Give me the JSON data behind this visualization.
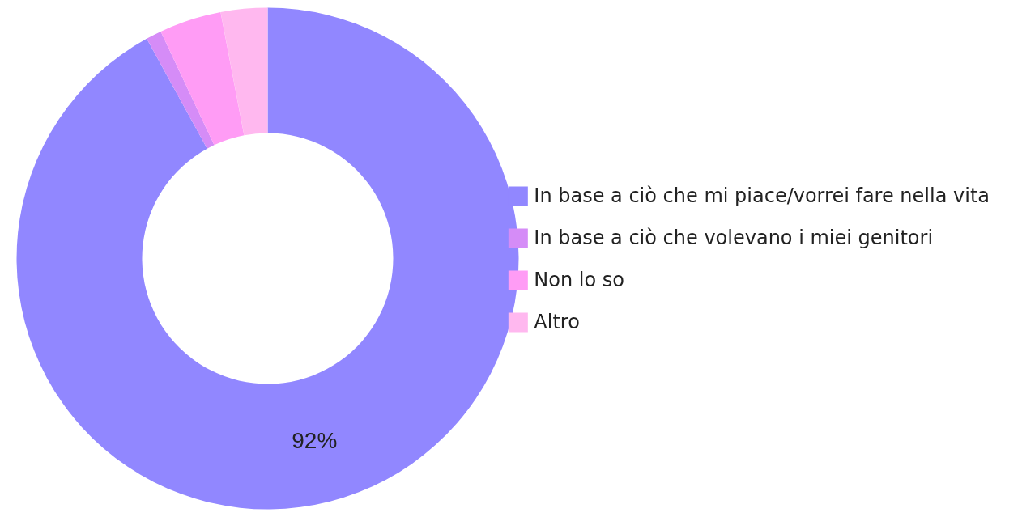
{
  "chart_data": {
    "type": "donut",
    "categories": [
      "In base a ciò che mi piace/vorrei fare nella vita",
      "In base a ciò che volevano i miei genitori",
      "Non lo so",
      "Altro"
    ],
    "values": [
      92,
      1,
      4,
      3
    ],
    "colors": [
      "#9187ff",
      "#d58cf7",
      "#ff9cf5",
      "#ffb8ef"
    ],
    "value_labels": [
      "92%",
      null,
      null,
      null
    ],
    "legend": "right"
  }
}
